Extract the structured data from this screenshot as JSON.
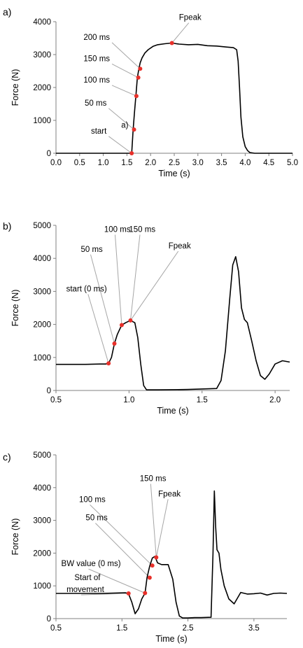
{
  "chart_data": [
    {
      "type": "line",
      "panel_label": "a)",
      "xlabel": "Time (s)",
      "ylabel": "Force (N)",
      "xlim": [
        0,
        5
      ],
      "ylim": [
        0,
        4000
      ],
      "x_ticks": [
        "0.0",
        "0.5",
        "1.0",
        "1.5",
        "2.0",
        "2.5",
        "3.0",
        "3.5",
        "4.0",
        "4.5",
        "5.0"
      ],
      "y_ticks": [
        "0",
        "1000",
        "2000",
        "3000",
        "4000"
      ],
      "grid": false,
      "series": [
        {
          "x": [
            0,
            1.6,
            1.63,
            1.66,
            1.69,
            1.72,
            1.75,
            1.78,
            1.82,
            1.88,
            1.95,
            2.05,
            2.15,
            2.3,
            2.45,
            2.6,
            2.8,
            3.0,
            3.2,
            3.4,
            3.6,
            3.75,
            3.82,
            3.85,
            3.88,
            3.91,
            3.95,
            4.0,
            4.05,
            4.1,
            4.2,
            5.0
          ],
          "y": [
            0,
            0,
            700,
            1250,
            1750,
            2300,
            2550,
            2750,
            2900,
            3050,
            3150,
            3250,
            3300,
            3330,
            3350,
            3320,
            3300,
            3310,
            3270,
            3260,
            3230,
            3210,
            3150,
            2800,
            2000,
            1100,
            500,
            200,
            80,
            20,
            0,
            0
          ]
        }
      ],
      "markers": [
        {
          "x": 1.6,
          "y": 0
        },
        {
          "x": 1.65,
          "y": 720
        },
        {
          "x": 1.7,
          "y": 1740
        },
        {
          "x": 1.74,
          "y": 2300
        },
        {
          "x": 1.78,
          "y": 2570
        },
        {
          "x": 2.45,
          "y": 3350
        }
      ],
      "annotations": [
        {
          "text": "Fpeak",
          "x": 2.6,
          "y": 4050,
          "ax": 2.45,
          "ay": 3350,
          "anchor": "start"
        },
        {
          "text": "200 ms",
          "x": 1.14,
          "y": 3450,
          "ax": 1.78,
          "ay": 2570,
          "anchor": "end"
        },
        {
          "text": "150 ms",
          "x": 1.14,
          "y": 2800,
          "ax": 1.74,
          "ay": 2300,
          "anchor": "end"
        },
        {
          "text": "100 ms",
          "x": 1.14,
          "y": 2150,
          "ax": 1.7,
          "ay": 1740,
          "anchor": "end"
        },
        {
          "text": "50 ms",
          "x": 1.07,
          "y": 1450,
          "ax": 1.65,
          "ay": 720,
          "anchor": "end"
        },
        {
          "text": "start",
          "x": 1.07,
          "y": 600,
          "ax": 1.6,
          "ay": 0,
          "anchor": "end"
        },
        {
          "text": "a)",
          "x": 1.38,
          "y": 780,
          "ax": null,
          "ay": null,
          "anchor": "start"
        }
      ]
    },
    {
      "type": "line",
      "panel_label": "b)",
      "xlabel": "Time (s)",
      "ylabel": "Force (N)",
      "xlim": [
        0.5,
        2.1
      ],
      "ylim": [
        0,
        5000
      ],
      "x_ticks": [
        "0.5",
        "1.0",
        "1.5",
        "2.0"
      ],
      "x_tick_values": [
        0.5,
        1.0,
        1.5,
        2.0
      ],
      "y_ticks": [
        "0",
        "1000",
        "2000",
        "3000",
        "4000",
        "5000"
      ],
      "grid": false,
      "series": [
        {
          "x": [
            0.5,
            0.7,
            0.8,
            0.84,
            0.86,
            0.88,
            0.9,
            0.92,
            0.95,
            0.98,
            1.01,
            1.04,
            1.06,
            1.08,
            1.1,
            1.12,
            1.2,
            1.4,
            1.6,
            1.63,
            1.66,
            1.69,
            1.71,
            1.73,
            1.75,
            1.77,
            1.79,
            1.81,
            1.84,
            1.87,
            1.9,
            1.93,
            1.96,
            2.0,
            2.05,
            2.1
          ],
          "y": [
            790,
            790,
            800,
            800,
            820,
            1000,
            1420,
            1700,
            1980,
            2060,
            2120,
            2050,
            1600,
            800,
            150,
            20,
            20,
            30,
            60,
            300,
            1200,
            2800,
            3800,
            4050,
            3600,
            2500,
            2150,
            2050,
            1500,
            900,
            450,
            340,
            500,
            800,
            900,
            860
          ]
        }
      ],
      "markers": [
        {
          "x": 0.86,
          "y": 820
        },
        {
          "x": 0.9,
          "y": 1420
        },
        {
          "x": 0.95,
          "y": 1980
        },
        {
          "x": 1.01,
          "y": 2120
        }
      ],
      "annotations": [
        {
          "text": "start (0 ms)",
          "x": 0.57,
          "y": 3000,
          "ax": 0.86,
          "ay": 820,
          "anchor": "start"
        },
        {
          "text": "50 ms",
          "x": 0.67,
          "y": 4200,
          "ax": 0.9,
          "ay": 1420,
          "anchor": "start"
        },
        {
          "text": "100 ms",
          "x": 0.83,
          "y": 4800,
          "ax": 0.95,
          "ay": 1980,
          "anchor": "start"
        },
        {
          "text": "150 ms",
          "x": 1.0,
          "y": 4800,
          "ax": 1.01,
          "ay": 2120,
          "anchor": "start"
        },
        {
          "text": "Fpeak",
          "x": 1.27,
          "y": 4300,
          "ax": 1.01,
          "ay": 2120,
          "anchor": "start"
        }
      ]
    },
    {
      "type": "line",
      "panel_label": "c)",
      "xlabel": "Time (s)",
      "ylabel": "Force (N)",
      "xlim": [
        0.5,
        4.0
      ],
      "ylim": [
        0,
        5000
      ],
      "x_ticks": [
        "0.5",
        "1.5",
        "2.5",
        "3.5"
      ],
      "x_tick_values": [
        0.5,
        1.5,
        2.5,
        3.5
      ],
      "y_ticks": [
        "0",
        "1000",
        "2000",
        "3000",
        "4000",
        "5000"
      ],
      "grid": false,
      "series": [
        {
          "x": [
            0.5,
            1.2,
            1.55,
            1.6,
            1.65,
            1.7,
            1.75,
            1.8,
            1.85,
            1.88,
            1.92,
            1.96,
            2.0,
            2.04,
            2.1,
            2.2,
            2.27,
            2.32,
            2.37,
            2.42,
            2.5,
            2.6,
            2.7,
            2.85,
            2.88,
            2.9,
            2.92,
            2.94,
            2.97,
            3.0,
            3.05,
            3.12,
            3.2,
            3.3,
            3.4,
            3.5,
            3.6,
            3.7,
            3.8,
            3.9,
            4.0
          ],
          "y": [
            770,
            770,
            790,
            760,
            500,
            150,
            300,
            600,
            780,
            1250,
            1600,
            1850,
            1900,
            1700,
            1650,
            1650,
            1200,
            500,
            80,
            20,
            20,
            30,
            30,
            40,
            2000,
            3900,
            2800,
            2100,
            2000,
            1500,
            1000,
            600,
            450,
            800,
            750,
            760,
            780,
            720,
            770,
            780,
            770
          ]
        }
      ],
      "markers": [
        {
          "x": 1.6,
          "y": 770
        },
        {
          "x": 1.85,
          "y": 780
        },
        {
          "x": 1.92,
          "y": 1250
        },
        {
          "x": 1.96,
          "y": 1620
        },
        {
          "x": 2.02,
          "y": 1870
        }
      ],
      "annotations": [
        {
          "text": "150 ms",
          "x": 1.77,
          "y": 4200,
          "ax": 2.02,
          "ay": 1870,
          "anchor": "start"
        },
        {
          "text": "Fpeak",
          "x": 2.05,
          "y": 3730,
          "ax": 2.02,
          "ay": 1870,
          "anchor": "start"
        },
        {
          "text": "100 ms",
          "x": 0.85,
          "y": 3560,
          "ax": 1.96,
          "ay": 1620,
          "anchor": "start"
        },
        {
          "text": "50 ms",
          "x": 0.95,
          "y": 3000,
          "ax": 1.92,
          "ay": 1250,
          "anchor": "start"
        },
        {
          "text": "BW value (0 ms)",
          "x": 0.58,
          "y": 1600,
          "ax": 1.85,
          "ay": 780,
          "anchor": "start"
        },
        {
          "text": "Start of",
          "x": 0.78,
          "y": 1180,
          "ax": null,
          "ay": null,
          "anchor": "start"
        },
        {
          "text": "movement",
          "x": 0.66,
          "y": 810,
          "ax": 1.6,
          "ay": 770,
          "anchor": "start"
        }
      ]
    }
  ],
  "colors": {
    "line": "#000000",
    "marker": "#e8302a",
    "annotation_line": "#a6a6a6",
    "axis": "#808080"
  }
}
